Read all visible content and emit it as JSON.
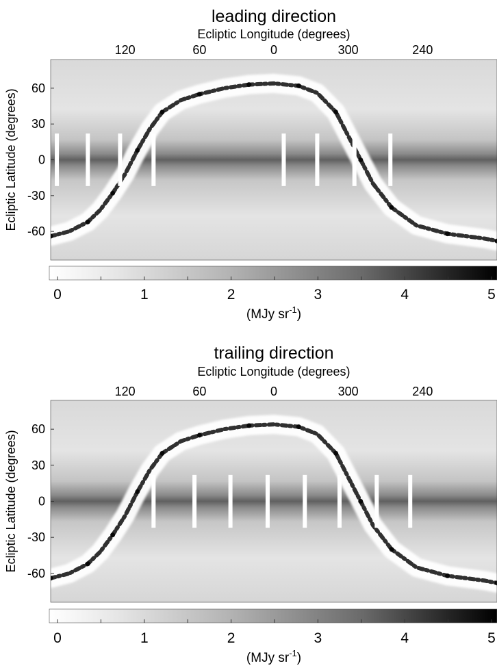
{
  "chart_data": [
    {
      "type": "heatmap",
      "title": "leading direction",
      "xlabel": "Ecliptic Longitude (degrees)",
      "ylabel": "Ecliptic Latitude (degrees)",
      "x_ticks": [
        120,
        60,
        0,
        300,
        240
      ],
      "y_ticks": [
        60,
        30,
        0,
        -30,
        -60
      ],
      "xlim": [
        180,
        -180
      ],
      "ylim": [
        -84,
        84
      ],
      "colorbar": {
        "ticks": [
          0,
          1,
          2,
          3,
          4,
          5
        ],
        "range": [
          0,
          5
        ],
        "unit_base": "(MJy sr",
        "unit_exp": "-1",
        "unit_close": ")",
        "colormap": "gray_r"
      },
      "bright_band": {
        "description_values": "galactic plane traced as lon/lat points",
        "points": [
          [
            180,
            -64
          ],
          [
            165,
            -60
          ],
          [
            150,
            -52
          ],
          [
            140,
            -42
          ],
          [
            130,
            -28
          ],
          [
            120,
            -12
          ],
          [
            110,
            8
          ],
          [
            100,
            26
          ],
          [
            90,
            40
          ],
          [
            75,
            50
          ],
          [
            60,
            55
          ],
          [
            40,
            60
          ],
          [
            20,
            63
          ],
          [
            0,
            64
          ],
          [
            -20,
            62
          ],
          [
            -35,
            56
          ],
          [
            -50,
            40
          ],
          [
            -60,
            20
          ],
          [
            -70,
            0
          ],
          [
            -80,
            -20
          ],
          [
            -95,
            -40
          ],
          [
            -115,
            -55
          ],
          [
            -140,
            -62
          ],
          [
            -170,
            -66
          ],
          [
            -180,
            -68
          ]
        ]
      },
      "gap_stripes_lon": [
        175,
        150,
        124,
        97,
        -8,
        -35,
        -65,
        -94
      ]
    },
    {
      "type": "heatmap",
      "title": "trailing direction",
      "xlabel": "Ecliptic Longitude (degrees)",
      "ylabel": "Ecliptic Latitude (degrees)",
      "x_ticks": [
        120,
        60,
        0,
        300,
        240
      ],
      "y_ticks": [
        60,
        30,
        0,
        -30,
        -60
      ],
      "xlim": [
        180,
        -180
      ],
      "ylim": [
        -84,
        84
      ],
      "colorbar": {
        "ticks": [
          0,
          1,
          2,
          3,
          4,
          5
        ],
        "range": [
          0,
          5
        ],
        "unit_base": "(MJy sr",
        "unit_exp": "-1",
        "unit_close": ")",
        "colormap": "gray_r"
      },
      "bright_band": {
        "description_values": "galactic plane traced as lon/lat points",
        "points": [
          [
            180,
            -64
          ],
          [
            165,
            -60
          ],
          [
            150,
            -52
          ],
          [
            140,
            -42
          ],
          [
            130,
            -28
          ],
          [
            120,
            -12
          ],
          [
            110,
            8
          ],
          [
            100,
            26
          ],
          [
            90,
            40
          ],
          [
            75,
            50
          ],
          [
            60,
            55
          ],
          [
            40,
            60
          ],
          [
            20,
            63
          ],
          [
            0,
            64
          ],
          [
            -20,
            62
          ],
          [
            -35,
            56
          ],
          [
            -50,
            40
          ],
          [
            -60,
            20
          ],
          [
            -70,
            0
          ],
          [
            -80,
            -20
          ],
          [
            -95,
            -40
          ],
          [
            -115,
            -55
          ],
          [
            -140,
            -62
          ],
          [
            -170,
            -66
          ],
          [
            -180,
            -68
          ]
        ]
      },
      "gap_stripes_lon": [
        97,
        64,
        35,
        5,
        -25,
        -53,
        -83,
        -110
      ]
    }
  ]
}
